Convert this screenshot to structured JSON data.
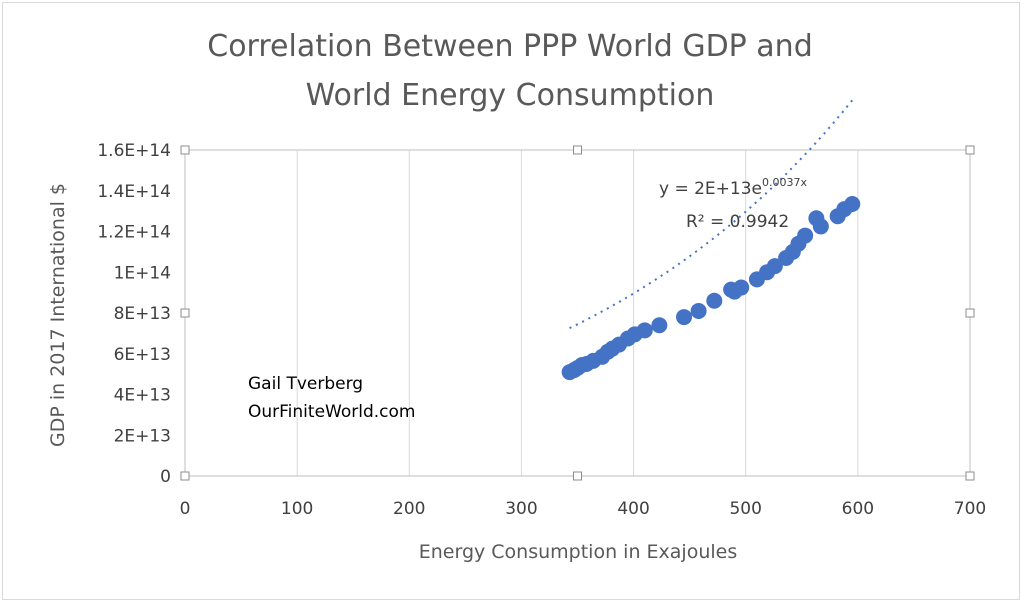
{
  "chart_data": {
    "type": "scatter",
    "title_lines": [
      "Correlation Between PPP World GDP and",
      "World Energy Consumption"
    ],
    "xlabel": "Energy Consumption in Exajoules",
    "ylabel": "GDP in 2017 International $",
    "xlim": [
      0,
      700
    ],
    "ylim": [
      0,
      160000000000000.0
    ],
    "x_ticks": [
      0,
      100,
      200,
      300,
      400,
      500,
      600,
      700
    ],
    "x_tick_labels": [
      "0",
      "100",
      "200",
      "300",
      "400",
      "500",
      "600",
      "700"
    ],
    "y_ticks": [
      0,
      20000000000000.0,
      40000000000000.0,
      60000000000000.0,
      80000000000000.0,
      100000000000000.0,
      120000000000000.0,
      140000000000000.0,
      160000000000000.0
    ],
    "y_tick_labels": [
      "0",
      "2E+13",
      "4E+13",
      "6E+13",
      "8E+13",
      "1E+14",
      "1.2E+14",
      "1.4E+14",
      "1.6E+14"
    ],
    "grid": "vertical",
    "series": [
      {
        "color": "#4472c4",
        "points": [
          [
            343,
            51000000000000.0
          ],
          [
            347,
            52000000000000.0
          ],
          [
            350,
            53000000000000.0
          ],
          [
            354,
            54500000000000.0
          ],
          [
            358,
            55000000000000.0
          ],
          [
            364,
            56500000000000.0
          ],
          [
            372,
            58500000000000.0
          ],
          [
            377,
            61000000000000.0
          ],
          [
            381,
            62500000000000.0
          ],
          [
            387,
            64500000000000.0
          ],
          [
            395,
            67500000000000.0
          ],
          [
            401,
            69500000000000.0
          ],
          [
            410,
            71500000000000.0
          ],
          [
            423,
            74000000000000.0
          ],
          [
            445,
            78000000000000.0
          ],
          [
            458,
            81000000000000.0
          ],
          [
            472,
            86000000000000.0
          ],
          [
            487,
            91500000000000.0
          ],
          [
            490,
            90500000000000.0
          ],
          [
            496,
            92500000000000.0
          ],
          [
            510,
            96500000000000.0
          ],
          [
            519,
            100000000000000.0
          ],
          [
            526,
            103000000000000.0
          ],
          [
            536,
            107000000000000.0
          ],
          [
            542,
            110000000000000.0
          ],
          [
            547,
            114000000000000.0
          ],
          [
            553,
            118000000000000.0
          ],
          [
            563,
            126500000000000.0
          ],
          [
            567,
            122500000000000.0
          ],
          [
            582,
            127500000000000.0
          ],
          [
            588,
            131000000000000.0
          ],
          [
            595,
            133500000000000.0
          ]
        ]
      }
    ],
    "trendline": {
      "type": "exponential",
      "equation_prefix": "y = 2E+13e",
      "equation_exponent": "0.0037x",
      "r_squared": "R² = 0.9942"
    },
    "annotations": [
      "Gail Tverberg",
      "OurFiniteWorld.com"
    ]
  }
}
